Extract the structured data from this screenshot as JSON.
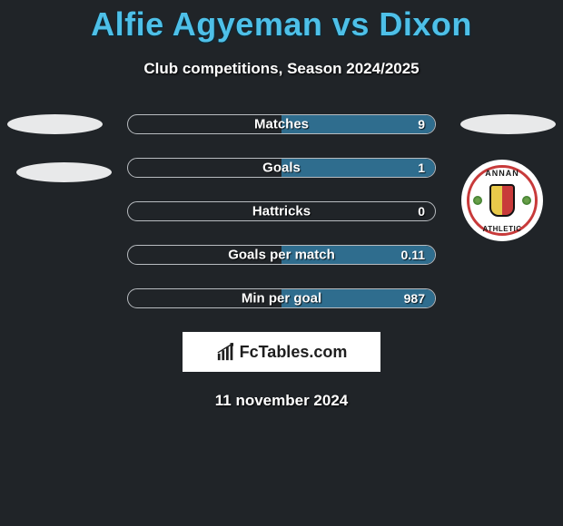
{
  "title": "Alfie Agyeman vs Dixon",
  "subtitle": "Club competitions, Season 2024/2025",
  "title_color": "#4ec0e8",
  "background_color": "#202428",
  "bar_fill_color": "#2f6d8e",
  "bar_border_color": "#b8bcc0",
  "text_color": "#ffffff",
  "stats": [
    {
      "label": "Matches",
      "right_value": "9",
      "right_fill_pct": 50
    },
    {
      "label": "Goals",
      "right_value": "1",
      "right_fill_pct": 50
    },
    {
      "label": "Hattricks",
      "right_value": "0",
      "right_fill_pct": 0
    },
    {
      "label": "Goals per match",
      "right_value": "0.11",
      "right_fill_pct": 50
    },
    {
      "label": "Min per goal",
      "right_value": "987",
      "right_fill_pct": 50
    }
  ],
  "badge": {
    "top_text": "ANNAN",
    "bottom_text": "ATHLETIC",
    "ring_color": "#c83a3a",
    "shield_left": "#e8c94a",
    "shield_right": "#c83a3a"
  },
  "watermark": "FcTables.com",
  "date": "11 november 2024"
}
